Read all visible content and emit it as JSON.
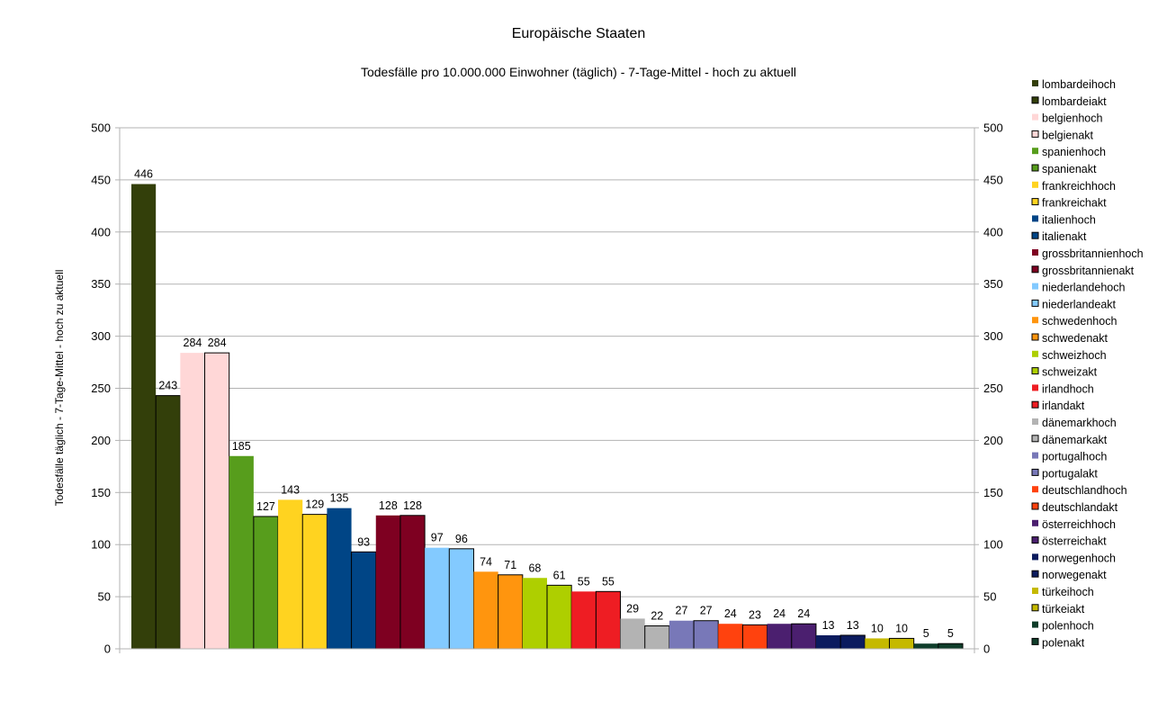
{
  "chart_data": {
    "type": "bar",
    "title": "Europäische Staaten",
    "subtitle": "Todesfälle pro 10.000.000 Einwohner (täglich) - 7-Tage-Mittel - hoch zu aktuell",
    "xlabel": "",
    "ylabel": "Todesfälle täglich - 7-Tage-Mittel - hoch zu aktuell",
    "ylim": [
      0,
      500
    ],
    "yticks": [
      "0",
      "50",
      "100",
      "150",
      "200",
      "250",
      "300",
      "350",
      "400",
      "450",
      "500"
    ],
    "grid": true,
    "legend_position": "right",
    "categories": [
      ""
    ],
    "series": [
      {
        "name": "lombardeihoch",
        "values": [
          446
        ],
        "color": "#333f0a"
      },
      {
        "name": "lombardeiakt",
        "values": [
          243
        ],
        "color": "#333f0a"
      },
      {
        "name": "belgienhoch",
        "values": [
          284
        ],
        "color": "#ffd7d7"
      },
      {
        "name": "belgienakt",
        "values": [
          284
        ],
        "color": "#ffd7d7"
      },
      {
        "name": "spanienhoch",
        "values": [
          185
        ],
        "color": "#579d1c"
      },
      {
        "name": "spanienakt",
        "values": [
          127
        ],
        "color": "#579d1c"
      },
      {
        "name": "frankreichhoch",
        "values": [
          143
        ],
        "color": "#ffd320"
      },
      {
        "name": "frankreichakt",
        "values": [
          129
        ],
        "color": "#ffd320"
      },
      {
        "name": "italienhoch",
        "values": [
          135
        ],
        "color": "#004586"
      },
      {
        "name": "italienakt",
        "values": [
          93
        ],
        "color": "#004586"
      },
      {
        "name": "grossbritannienhoch",
        "values": [
          128
        ],
        "color": "#7e0021"
      },
      {
        "name": "grossbritannienakt",
        "values": [
          128
        ],
        "color": "#7e0021"
      },
      {
        "name": "niederlandehoch",
        "values": [
          97
        ],
        "color": "#83caff"
      },
      {
        "name": "niederlandeakt",
        "values": [
          96
        ],
        "color": "#83caff"
      },
      {
        "name": "schwedenhoch",
        "values": [
          74
        ],
        "color": "#ff950e"
      },
      {
        "name": "schwedenakt",
        "values": [
          71
        ],
        "color": "#ff950e"
      },
      {
        "name": "schweizhoch",
        "values": [
          68
        ],
        "color": "#aecf00"
      },
      {
        "name": "schweizakt",
        "values": [
          61
        ],
        "color": "#aecf00"
      },
      {
        "name": "irlandhoch",
        "values": [
          55
        ],
        "color": "#ee1d23"
      },
      {
        "name": "irlandakt",
        "values": [
          55
        ],
        "color": "#ee1d23"
      },
      {
        "name": "dänemarkhoch",
        "values": [
          29
        ],
        "color": "#b3b3b3"
      },
      {
        "name": "dänemarkakt",
        "values": [
          22
        ],
        "color": "#b3b3b3"
      },
      {
        "name": "portugalhoch",
        "values": [
          27
        ],
        "color": "#7878b8"
      },
      {
        "name": "portugalakt",
        "values": [
          27
        ],
        "color": "#7878b8"
      },
      {
        "name": "deutschlandhoch",
        "values": [
          24
        ],
        "color": "#ff420e"
      },
      {
        "name": "deutschlandakt",
        "values": [
          23
        ],
        "color": "#ff420e"
      },
      {
        "name": "österreichhoch",
        "values": [
          24
        ],
        "color": "#4b1f6f"
      },
      {
        "name": "österreichakt",
        "values": [
          24
        ],
        "color": "#4b1f6f"
      },
      {
        "name": "norwegenhoch",
        "values": [
          13
        ],
        "color": "#0b1b5e"
      },
      {
        "name": "norwegenakt",
        "values": [
          13
        ],
        "color": "#0b1b5e"
      },
      {
        "name": "türkeihoch",
        "values": [
          10
        ],
        "color": "#c5b900"
      },
      {
        "name": "türkeiakt",
        "values": [
          10
        ],
        "color": "#c5b900"
      },
      {
        "name": "polenhoch",
        "values": [
          5
        ],
        "color": "#0f3d2a"
      },
      {
        "name": "polenakt",
        "values": [
          5
        ],
        "color": "#0f3d2a"
      }
    ]
  }
}
